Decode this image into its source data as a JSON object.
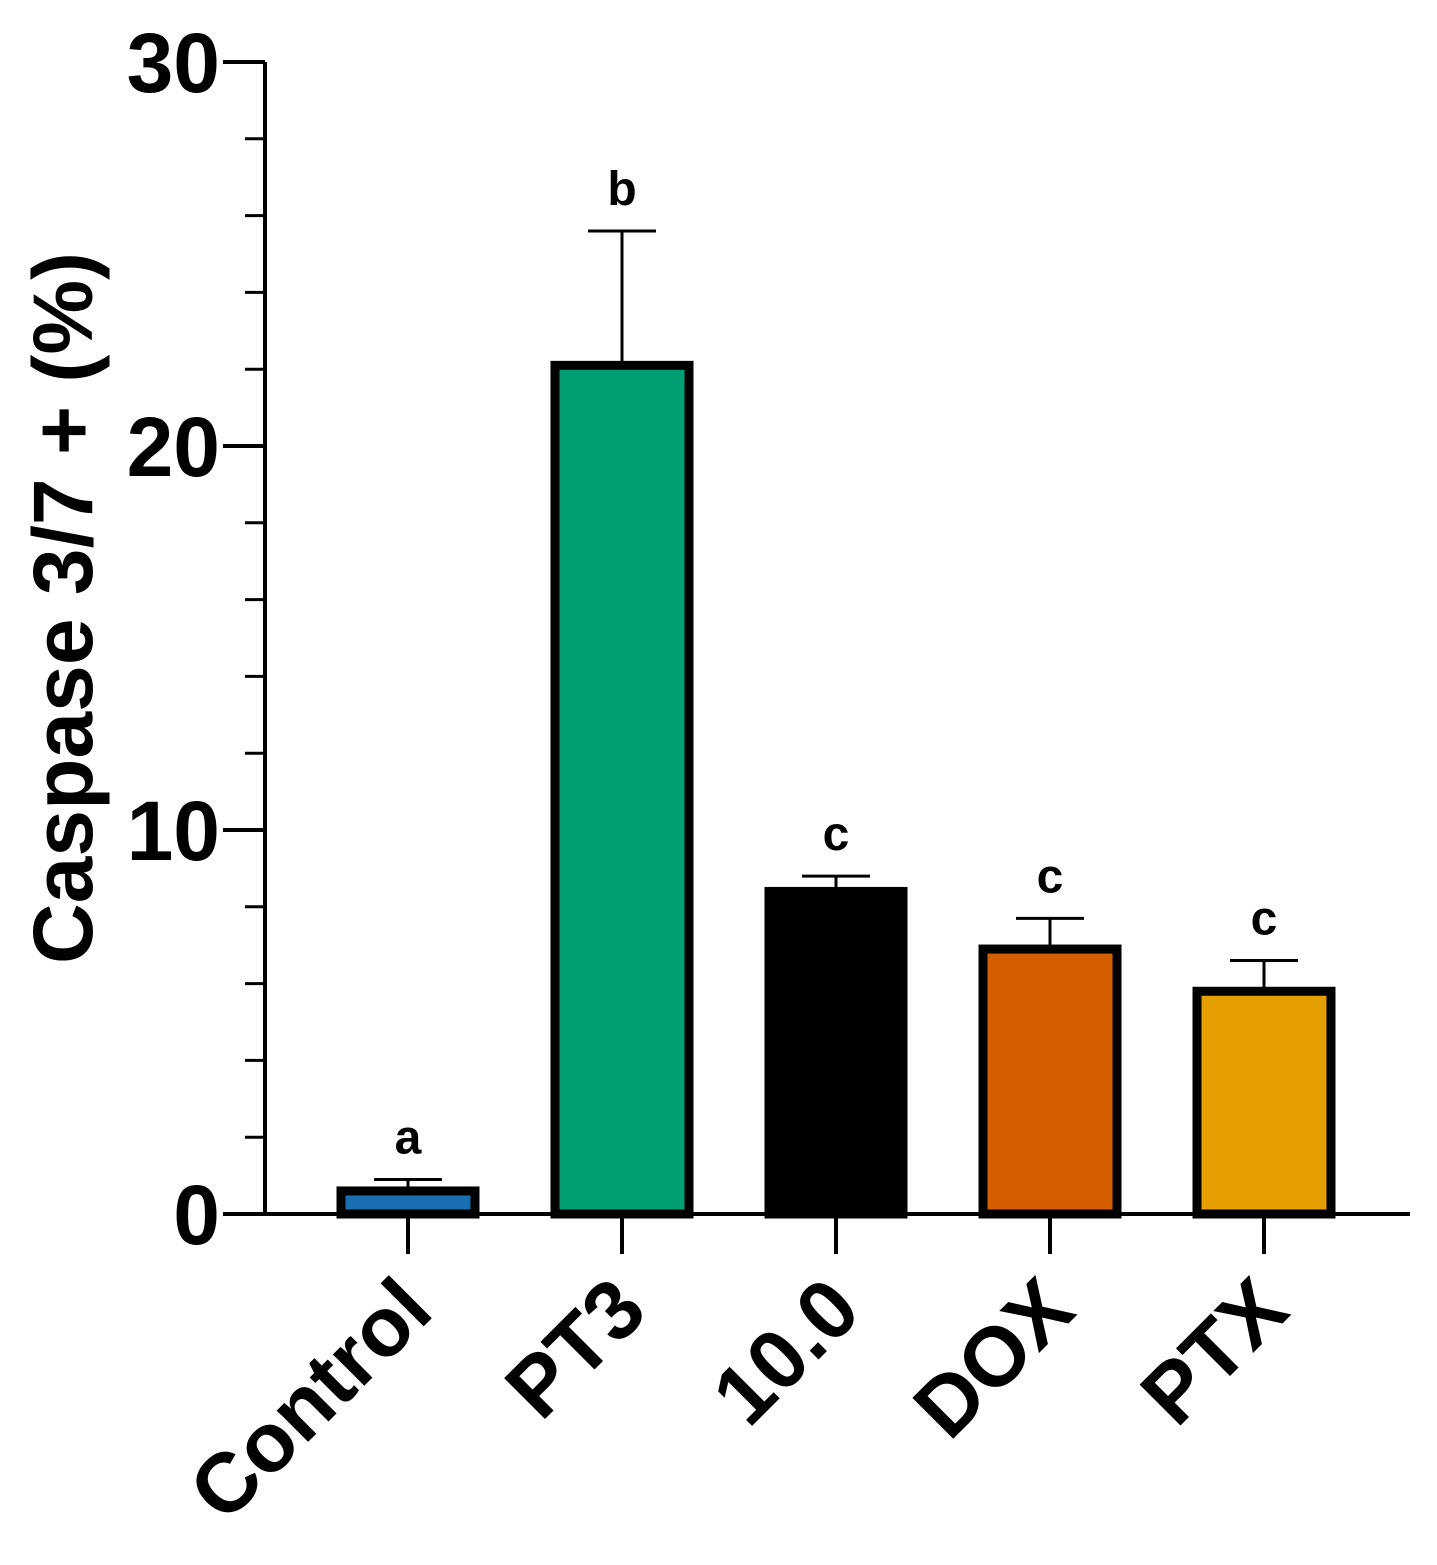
{
  "chart_data": {
    "type": "bar",
    "title": "",
    "xlabel": "",
    "ylabel": "Caspase 3/7 + (%)",
    "ylim": [
      0,
      30
    ],
    "major_ticks": [
      0,
      10,
      20,
      30
    ],
    "minor_tick_step": 2,
    "categories": [
      "Control",
      "PT3",
      "10.0",
      "DOX",
      "PTX"
    ],
    "values": [
      0.6,
      22.1,
      8.4,
      6.9,
      5.8
    ],
    "errors": [
      0.3,
      3.5,
      0.4,
      0.8,
      0.8
    ],
    "significance_letters": [
      "a",
      "b",
      "c",
      "c",
      "c"
    ],
    "colors": [
      "#1a6fb0",
      "#009e73",
      "#000000",
      "#d55e00",
      "#e69f00"
    ],
    "edge_color": "#000000",
    "grid": false,
    "legend": false
  }
}
